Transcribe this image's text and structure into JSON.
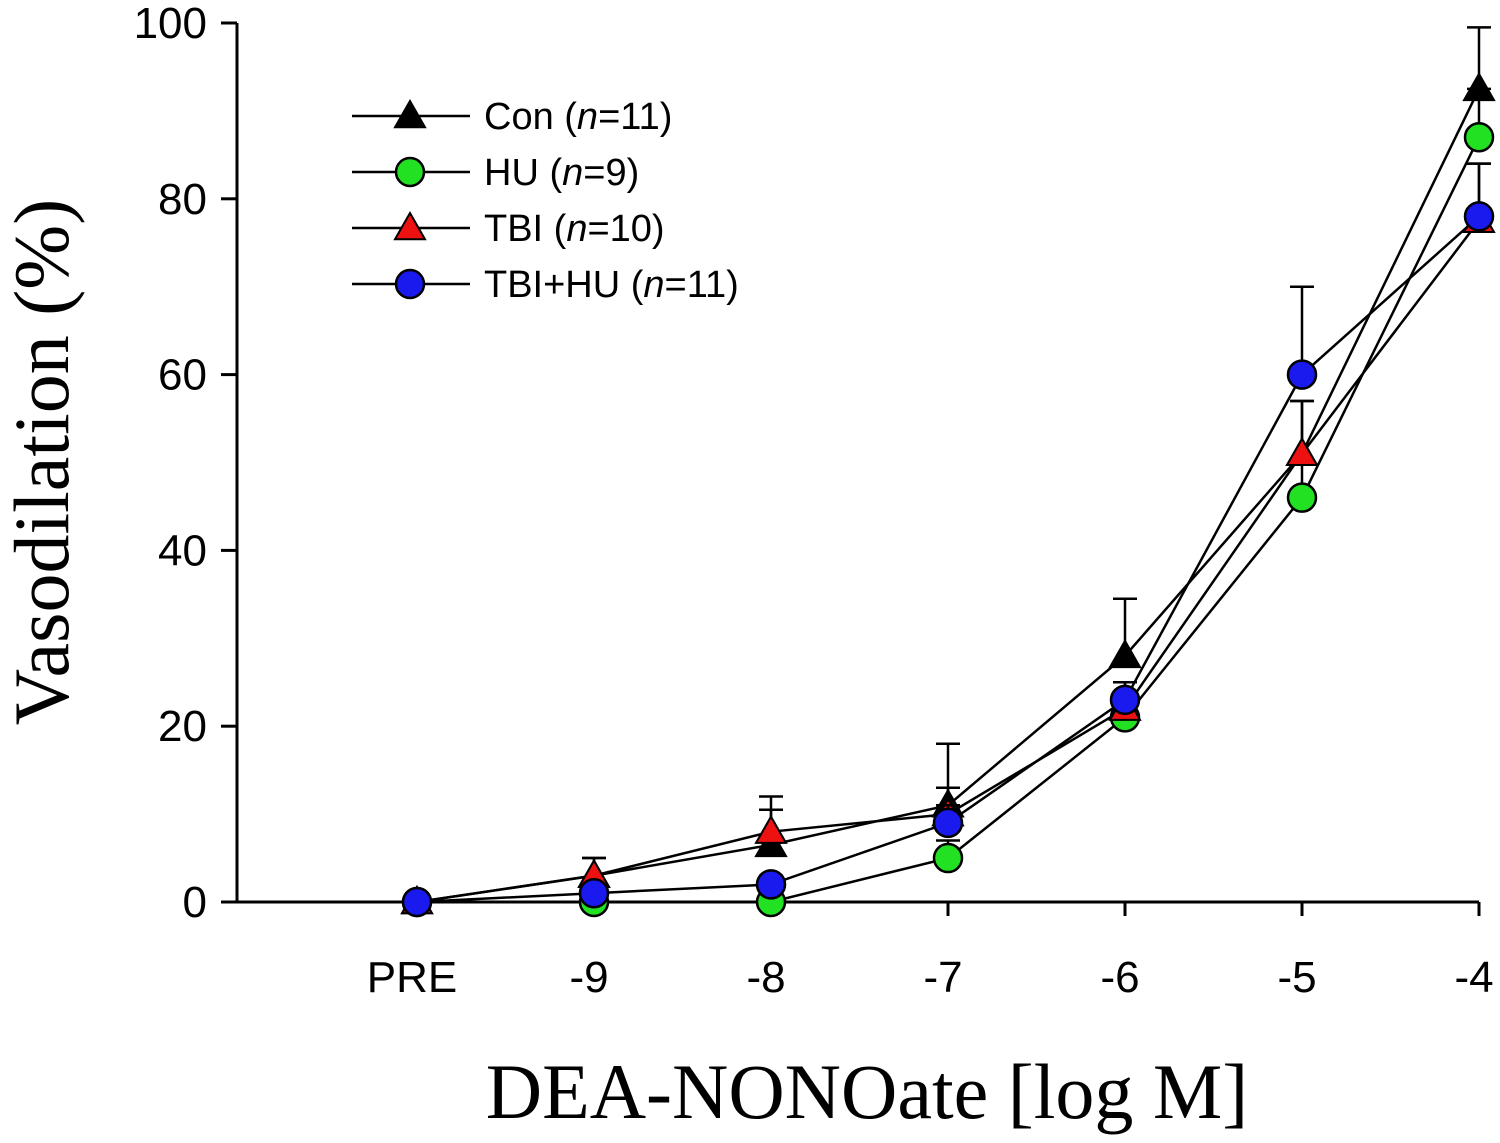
{
  "chart_data": {
    "type": "line",
    "title": "",
    "xlabel": "DEA-NONOate [log M]",
    "ylabel": "Vasodilation (%)",
    "categories": [
      "PRE",
      "-9",
      "-8",
      "-7",
      "-6",
      "-5",
      "-4"
    ],
    "yticks": [
      "0",
      "20",
      "40",
      "60",
      "80",
      "100"
    ],
    "ylim": [
      0,
      100
    ],
    "grid": false,
    "legend_position": "top-left",
    "series": [
      {
        "name": "Con (n=11)",
        "label_prefix": "Con (",
        "label_n": "n",
        "label_suffix": "=11)",
        "marker": "triangle",
        "color": "#000000",
        "values": [
          0,
          3,
          6.5,
          11,
          28,
          51,
          92.5
        ],
        "errors": [
          1,
          2,
          4,
          7,
          6.5,
          6,
          7
        ]
      },
      {
        "name": "HU (n=9)",
        "label_prefix": "HU (",
        "label_n": "n",
        "label_suffix": "=9)",
        "marker": "circle",
        "color": "#22e022",
        "values": [
          0,
          0,
          0,
          5,
          21,
          46,
          87
        ],
        "errors": [
          0,
          0,
          0,
          2,
          2.5,
          4,
          5.5
        ]
      },
      {
        "name": "TBI (n=10)",
        "label_prefix": "TBI (",
        "label_n": "n",
        "label_suffix": "=10)",
        "marker": "triangle",
        "color": "#ee1111",
        "values": [
          0,
          3,
          8,
          10,
          22,
          51,
          77.5
        ],
        "errors": [
          0,
          2,
          4,
          3,
          3,
          6,
          6.5
        ]
      },
      {
        "name": "TBI+HU (n=11)",
        "label_prefix": "TBI+HU (",
        "label_n": "n",
        "label_suffix": "=11)",
        "marker": "circle",
        "color": "#1a1aee",
        "values": [
          0,
          1,
          2,
          9,
          23,
          60,
          78
        ],
        "errors": [
          0,
          0,
          1,
          2,
          2,
          10,
          6
        ]
      }
    ]
  }
}
